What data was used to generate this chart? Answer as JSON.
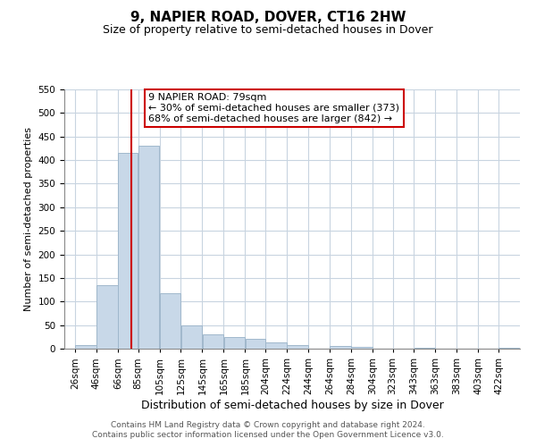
{
  "title": "9, NAPIER ROAD, DOVER, CT16 2HW",
  "subtitle": "Size of property relative to semi-detached houses in Dover",
  "xlabel": "Distribution of semi-detached houses by size in Dover",
  "ylabel": "Number of semi-detached properties",
  "bar_labels": [
    "26sqm",
    "46sqm",
    "66sqm",
    "85sqm",
    "105sqm",
    "125sqm",
    "145sqm",
    "165sqm",
    "185sqm",
    "204sqm",
    "224sqm",
    "244sqm",
    "264sqm",
    "284sqm",
    "304sqm",
    "323sqm",
    "343sqm",
    "363sqm",
    "383sqm",
    "403sqm",
    "422sqm"
  ],
  "bar_values": [
    7,
    135,
    415,
    430,
    118,
    50,
    30,
    25,
    20,
    13,
    7,
    0,
    5,
    3,
    0,
    0,
    1,
    0,
    0,
    0,
    2
  ],
  "label_vals": [
    26,
    46,
    66,
    85,
    105,
    125,
    145,
    165,
    185,
    204,
    224,
    244,
    264,
    284,
    304,
    323,
    343,
    363,
    383,
    403,
    422
  ],
  "bar_color": "#c8d8e8",
  "bar_edgecolor": "#a0b8cc",
  "property_line_x": 79,
  "xlim_left": 16,
  "xlim_right": 442,
  "ylim": [
    0,
    550
  ],
  "yticks": [
    0,
    50,
    100,
    150,
    200,
    250,
    300,
    350,
    400,
    450,
    500,
    550
  ],
  "annotation_title": "9 NAPIER ROAD: 79sqm",
  "annotation_line1": "← 30% of semi-detached houses are smaller (373)",
  "annotation_line2": "68% of semi-detached houses are larger (842) →",
  "red_line_color": "#cc0000",
  "footer1": "Contains HM Land Registry data © Crown copyright and database right 2024.",
  "footer2": "Contains public sector information licensed under the Open Government Licence v3.0.",
  "grid_color": "#c8d4e0",
  "title_fontsize": 11,
  "subtitle_fontsize": 9,
  "ylabel_fontsize": 8,
  "xlabel_fontsize": 9,
  "tick_fontsize": 7.5,
  "footer_fontsize": 6.5,
  "ann_fontsize": 8
}
